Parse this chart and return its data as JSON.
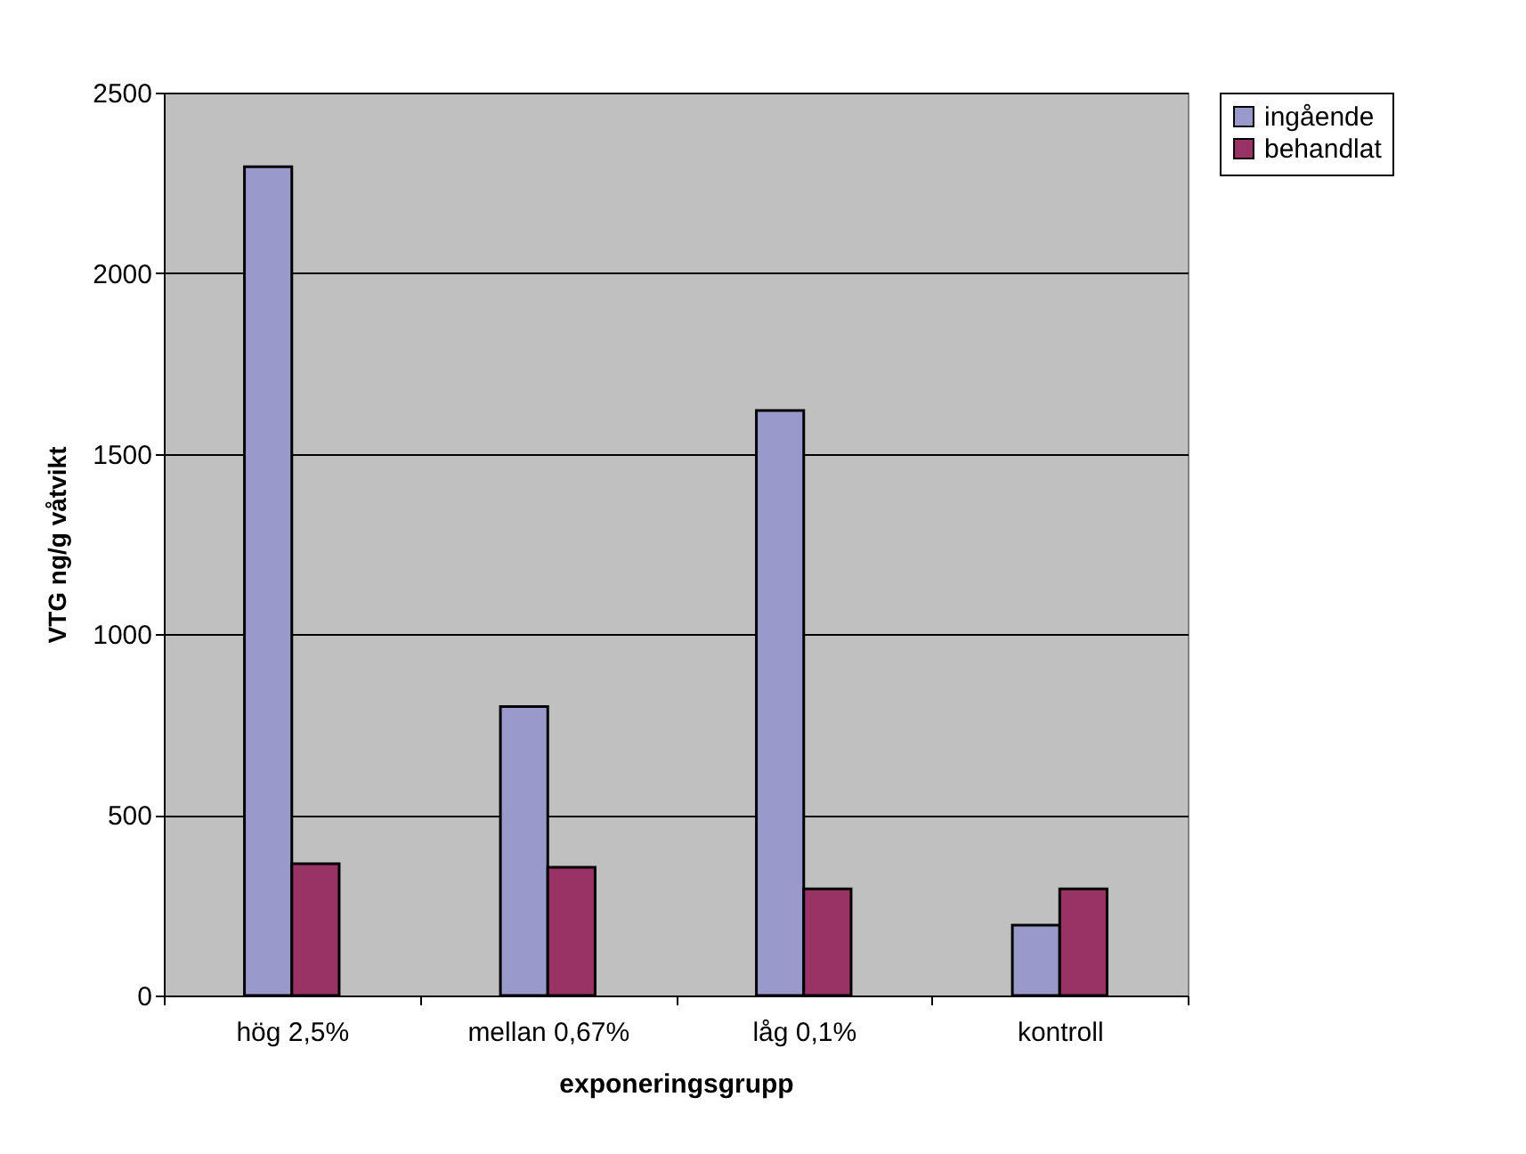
{
  "chart_data": {
    "type": "bar",
    "xlabel": "exponeringsgrupp",
    "ylabel": "VTG ng/g våtvikt",
    "categories": [
      "hög 2,5%",
      "mellan 0,67%",
      "låg 0,1%",
      "kontroll"
    ],
    "series": [
      {
        "name": "ingående",
        "color": "#9999cc",
        "values": [
          2295,
          800,
          1620,
          195
        ]
      },
      {
        "name": "behandlat",
        "color": "#993366",
        "values": [
          365,
          355,
          295,
          295
        ]
      }
    ],
    "ylim": [
      0,
      2500
    ],
    "yticks": [
      0,
      500,
      1000,
      1500,
      2000,
      2500
    ],
    "grid": "y",
    "legend": "right"
  }
}
